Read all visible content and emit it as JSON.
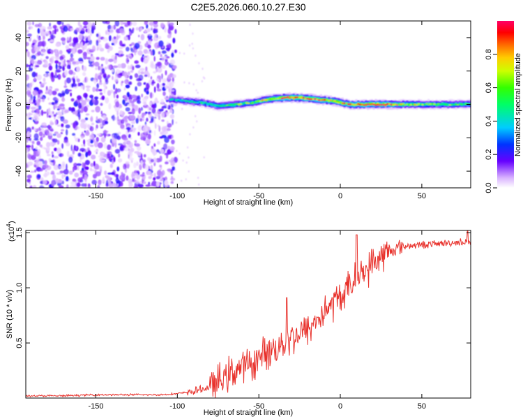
{
  "title": "C2E5.2026.060.10.27.E30",
  "chart_data": [
    {
      "type": "heatmap",
      "title": "C2E5.2026.060.10.27.E30",
      "xlabel": "Height of straight line (km)",
      "ylabel": "Frequency (Hz)",
      "xlim": [
        -193,
        80
      ],
      "ylim": [
        -50,
        50
      ],
      "x_ticks": [
        -150,
        -100,
        -50,
        0,
        50
      ],
      "y_ticks": [
        -40,
        -20,
        0,
        20,
        40
      ],
      "colorbar": {
        "label": "Normalized spectral amplitude",
        "range": [
          0,
          1
        ],
        "ticks": [
          0.0,
          0.2,
          0.4,
          0.6,
          0.8
        ]
      },
      "noise_region_x": [
        -193,
        -101
      ],
      "ridge": {
        "x": [
          -105,
          -95,
          -85,
          -75,
          -65,
          -55,
          -45,
          -35,
          -25,
          -15,
          -5,
          5,
          15,
          25,
          40,
          60,
          80
        ],
        "freq": [
          3,
          2,
          1,
          -1,
          0,
          1,
          3,
          4,
          4,
          3,
          2,
          0,
          0,
          0,
          0,
          0,
          0
        ],
        "amplitude": [
          0.4,
          0.45,
          0.5,
          0.55,
          0.6,
          0.65,
          0.75,
          0.9,
          0.95,
          0.9,
          0.8,
          0.85,
          0.9,
          0.95,
          0.7,
          0.6,
          0.55
        ]
      }
    },
    {
      "type": "line",
      "xlabel": "Height of straight line (km)",
      "ylabel": "SNR (10 * v/v)",
      "ylabel_scale": "(x10",
      "ylabel_exponent": "4",
      "xlim": [
        -193,
        80
      ],
      "ylim": [
        0,
        1.52
      ],
      "x_ticks": [
        -150,
        -100,
        -50,
        0,
        50
      ],
      "y_ticks": [
        0.5,
        1.0,
        1.5
      ],
      "color": "#e8312b",
      "series": [
        {
          "name": "SNR",
          "x": [
            -193,
            -170,
            -150,
            -130,
            -110,
            -100,
            -95,
            -90,
            -85,
            -80,
            -75,
            -70,
            -65,
            -60,
            -55,
            -50,
            -45,
            -40,
            -35,
            -30,
            -25,
            -20,
            -15,
            -10,
            -5,
            0,
            5,
            10,
            15,
            20,
            25,
            30,
            35,
            40,
            50,
            60,
            70,
            80
          ],
          "values": [
            0.02,
            0.02,
            0.03,
            0.03,
            0.03,
            0.04,
            0.05,
            0.06,
            0.08,
            0.1,
            0.14,
            0.2,
            0.25,
            0.28,
            0.3,
            0.36,
            0.42,
            0.45,
            0.5,
            0.55,
            0.58,
            0.62,
            0.7,
            0.78,
            0.85,
            0.92,
            1.0,
            1.08,
            1.15,
            1.22,
            1.28,
            1.33,
            1.36,
            1.38,
            1.39,
            1.4,
            1.41,
            1.42
          ]
        }
      ],
      "annotations": [
        {
          "x": -33,
          "y": 0.91,
          "label": "spike"
        },
        {
          "x": 10,
          "y": 1.48,
          "label": "spike"
        },
        {
          "x": 78,
          "y": 1.52,
          "label": "spike"
        }
      ]
    }
  ]
}
